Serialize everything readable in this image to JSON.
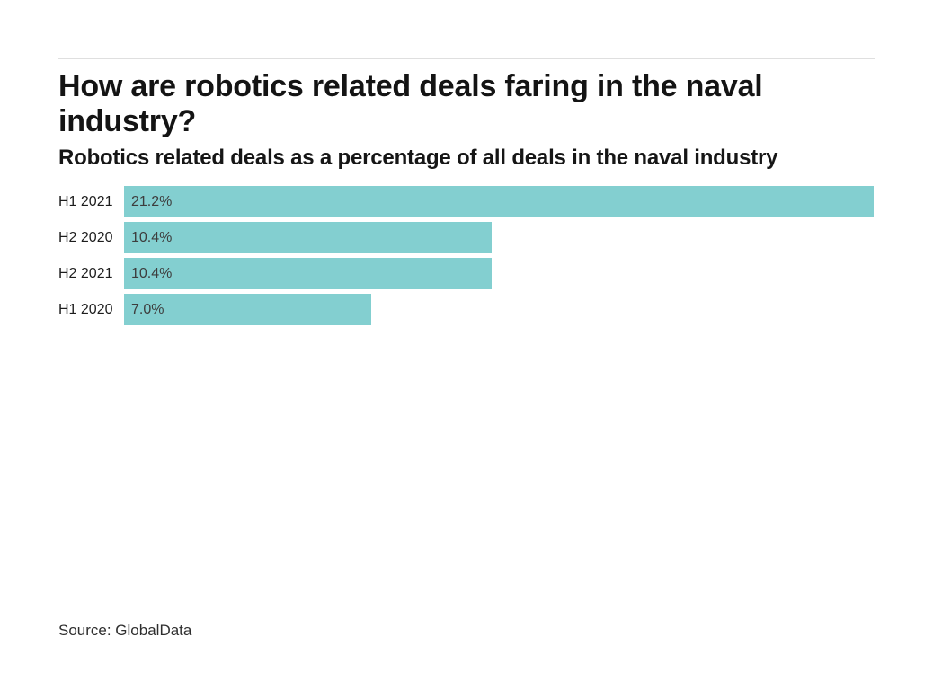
{
  "chart_data": {
    "type": "bar",
    "orientation": "horizontal",
    "title": "How are robotics related deals faring in the naval industry?",
    "subtitle": "Robotics related deals as a percentage of all deals in the naval industry",
    "categories": [
      "H1 2021",
      "H2 2020",
      "H2 2021",
      "H1 2020"
    ],
    "values": [
      21.2,
      10.4,
      10.4,
      7.0
    ],
    "display_values": [
      "21.2%",
      "10.4%",
      "10.4%",
      "7.0%"
    ],
    "xlim": [
      0,
      21.2
    ],
    "grid": false,
    "legend": "none",
    "value_label_position": "inside-start",
    "bar_color": "#83CFD0",
    "source": "Source: GlobalData"
  }
}
